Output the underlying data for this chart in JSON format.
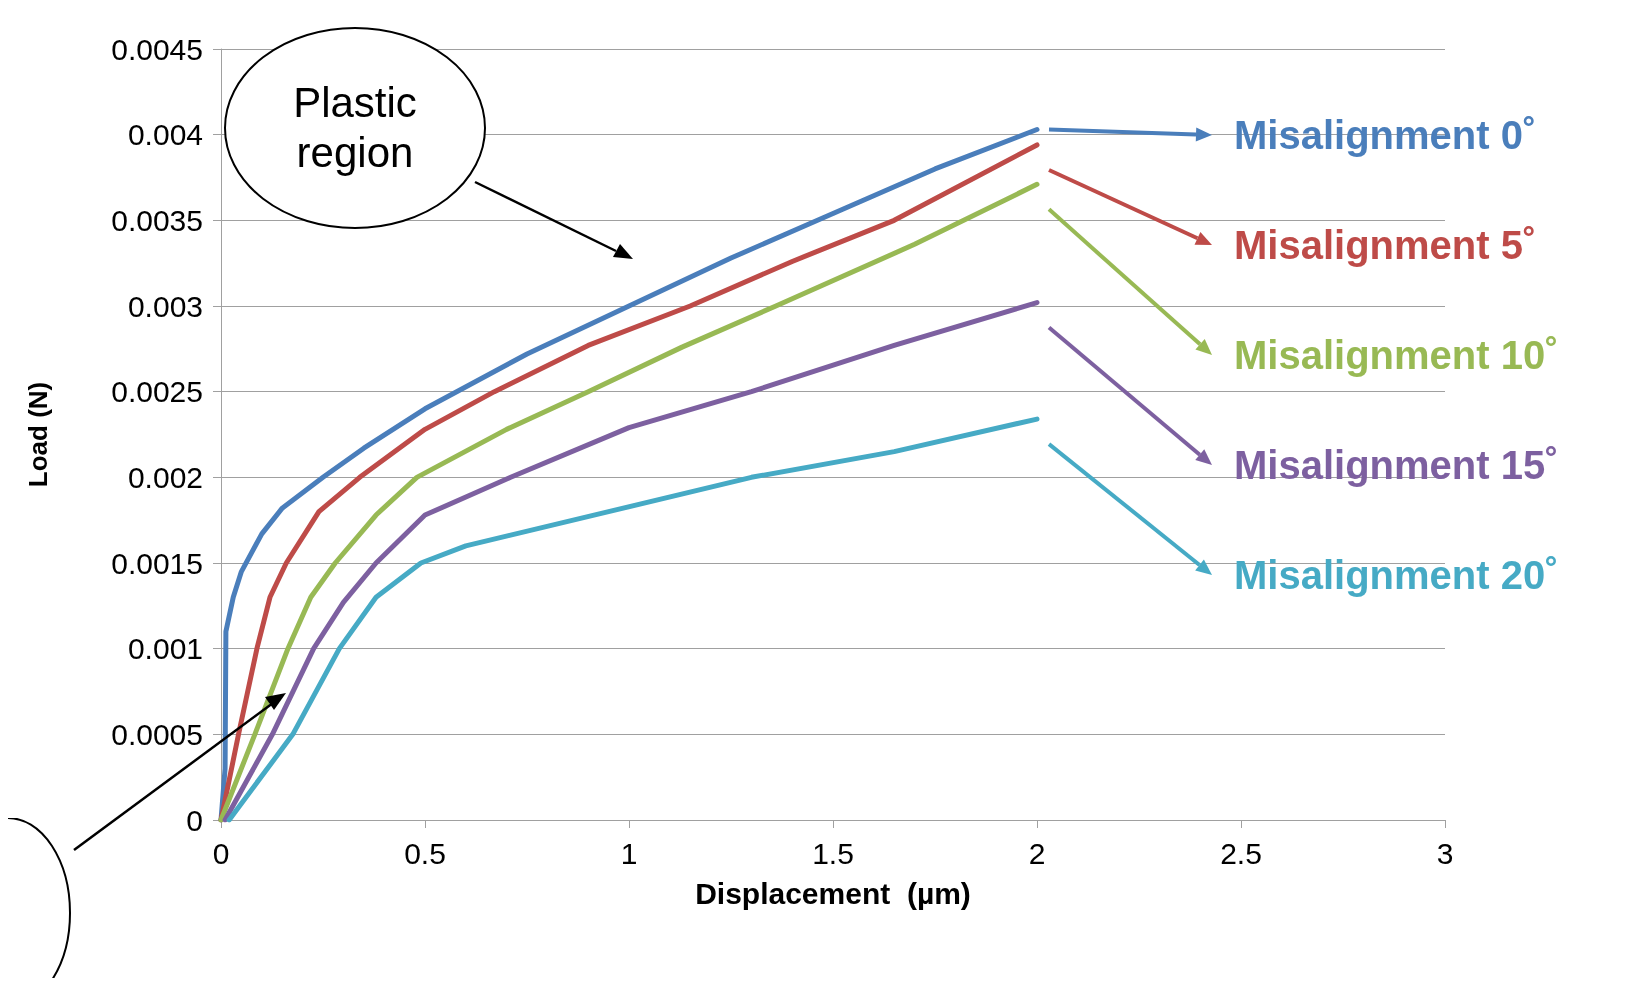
{
  "chart_data": {
    "type": "line",
    "xlabel": "Displacement  (µm)",
    "ylabel": "Load (N)",
    "xlim": [
      0,
      3
    ],
    "xticks": [
      0,
      0.5,
      1,
      1.5,
      2,
      2.5,
      3
    ],
    "ylim": [
      0,
      0.0045
    ],
    "yticks": [
      0,
      0.0005,
      0.001,
      0.0015,
      0.002,
      0.0025,
      0.003,
      0.0035,
      0.004,
      0.0045
    ],
    "grid": "y",
    "legend": "right",
    "marker": "none",
    "line_style": "solid",
    "annotations": [
      "Plastic region"
    ],
    "series": [
      {
        "name": "Misalignment 0˚",
        "color": "#4a7ebb",
        "x": [
          0,
          0.01,
          0.012,
          0.03,
          0.05,
          0.1,
          0.15,
          0.25,
          0.35,
          0.5,
          0.75,
          1,
          1.25,
          1.5,
          1.75,
          2
        ],
        "values": [
          0,
          0.0003,
          0.0011,
          0.0013,
          0.00145,
          0.00167,
          0.00182,
          0.002,
          0.00217,
          0.0024,
          0.00272,
          0.003,
          0.00328,
          0.00354,
          0.0038,
          0.00403
        ]
      },
      {
        "name": "Misalignment 5˚",
        "color": "#be4b48",
        "x": [
          0,
          0.043,
          0.088,
          0.12,
          0.16,
          0.24,
          0.34,
          0.5,
          0.67,
          0.9,
          1.15,
          1.4,
          1.65,
          2
        ],
        "values": [
          0,
          0.0005,
          0.001,
          0.0013,
          0.0015,
          0.0018,
          0.002,
          0.00228,
          0.0025,
          0.00277,
          0.003,
          0.00326,
          0.0035,
          0.00394
        ]
      },
      {
        "name": "Misalignment 10˚",
        "color": "#98b954",
        "x": [
          0,
          0.083,
          0.164,
          0.22,
          0.28,
          0.38,
          0.48,
          0.7,
          0.9,
          1.13,
          1.36,
          1.7,
          2
        ],
        "values": [
          0,
          0.0005,
          0.001,
          0.0013,
          0.0015,
          0.00178,
          0.002,
          0.00228,
          0.0025,
          0.00276,
          0.003,
          0.00336,
          0.00371
        ]
      },
      {
        "name": "Misalignment 15˚",
        "color": "#7d60a0",
        "x": [
          0.01,
          0.126,
          0.227,
          0.3,
          0.38,
          0.5,
          0.71,
          1,
          1.3,
          1.65,
          2
        ],
        "values": [
          0,
          0.0005,
          0.001,
          0.00127,
          0.0015,
          0.00178,
          0.002,
          0.00229,
          0.0025,
          0.00277,
          0.00302
        ]
      },
      {
        "name": "Misalignment 20˚",
        "color": "#46aac5",
        "x": [
          0.02,
          0.176,
          0.29,
          0.38,
          0.49,
          0.6,
          0.95,
          1.3,
          1.65,
          2
        ],
        "values": [
          0,
          0.0005,
          0.001,
          0.0013,
          0.0015,
          0.0016,
          0.0018,
          0.002,
          0.00215,
          0.00234
        ]
      }
    ]
  }
}
